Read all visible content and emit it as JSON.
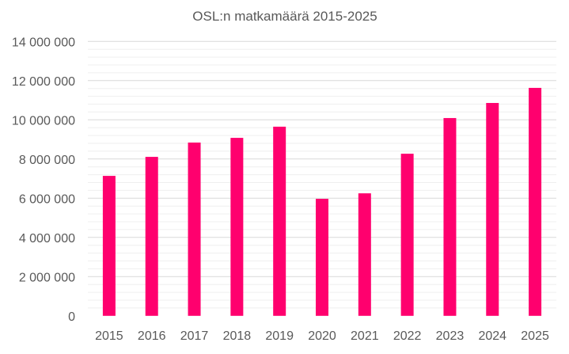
{
  "chart_data": {
    "type": "bar",
    "title": "OSL:n matkamäärä 2015-2025",
    "xlabel": "",
    "ylabel": "",
    "categories": [
      "2015",
      "2016",
      "2017",
      "2018",
      "2019",
      "2020",
      "2021",
      "2022",
      "2023",
      "2024",
      "2025"
    ],
    "values": [
      7140000,
      8110000,
      8840000,
      9080000,
      9650000,
      5970000,
      6250000,
      8270000,
      10090000,
      10860000,
      11630000
    ],
    "ylim": [
      0,
      14000000
    ],
    "yticks": [
      0,
      2000000,
      4000000,
      6000000,
      8000000,
      10000000,
      12000000,
      14000000
    ],
    "ytick_labels": [
      "0",
      "2 000 000",
      "4 000 000",
      "6 000 000",
      "8 000 000",
      "10 000 000",
      "12 000 000",
      "14 000 000"
    ],
    "minor_grid_step": 400000,
    "grid": true,
    "legend": "none",
    "bar_color": "#FF006E"
  }
}
